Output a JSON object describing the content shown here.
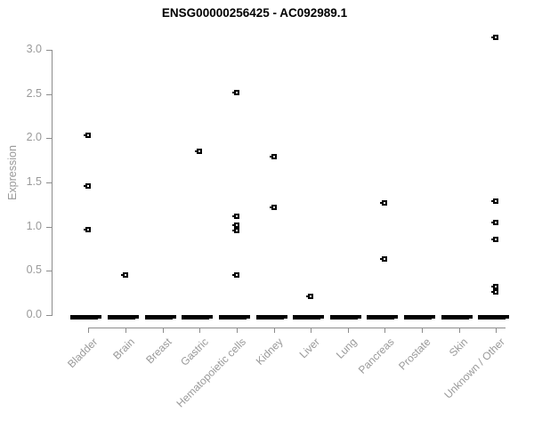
{
  "chart_data": {
    "type": "scatter",
    "title": "ENSG00000256425 - AC092989.1",
    "ylabel": "Expression",
    "xlabel": "",
    "ylim": [
      0,
      3.2
    ],
    "grid": false,
    "legend": false,
    "yticks": [
      {
        "value": 0.0,
        "label": "0.0"
      },
      {
        "value": 0.5,
        "label": "0.5"
      },
      {
        "value": 1.0,
        "label": "1.0"
      },
      {
        "value": 1.5,
        "label": "1.5"
      },
      {
        "value": 2.0,
        "label": "2.0"
      },
      {
        "value": 2.5,
        "label": "2.5"
      },
      {
        "value": 3.0,
        "label": "3.0"
      }
    ],
    "categories": [
      "Bladder",
      "Brain",
      "Breast",
      "Gastric",
      "Hematopoietic cells",
      "Kidney",
      "Liver",
      "Lung",
      "Pancreas",
      "Prostate",
      "Skin",
      "Unknown / Other"
    ],
    "series": [
      {
        "category": "Bladder",
        "zero_cluster": true,
        "points": [
          2.03,
          1.46,
          0.97
        ]
      },
      {
        "category": "Brain",
        "zero_cluster": true,
        "points": [
          0.45
        ]
      },
      {
        "category": "Breast",
        "zero_cluster": true,
        "points": []
      },
      {
        "category": "Gastric",
        "zero_cluster": true,
        "points": [
          1.85
        ]
      },
      {
        "category": "Hematopoietic cells",
        "zero_cluster": true,
        "points": [
          2.52,
          1.12,
          1.02,
          0.96,
          0.45
        ]
      },
      {
        "category": "Kidney",
        "zero_cluster": true,
        "points": [
          1.79,
          1.22
        ]
      },
      {
        "category": "Liver",
        "zero_cluster": true,
        "points": [
          0.21
        ]
      },
      {
        "category": "Lung",
        "zero_cluster": true,
        "points": []
      },
      {
        "category": "Pancreas",
        "zero_cluster": true,
        "points": [
          1.27,
          0.63
        ]
      },
      {
        "category": "Prostate",
        "zero_cluster": true,
        "points": []
      },
      {
        "category": "Skin",
        "zero_cluster": true,
        "points": []
      },
      {
        "category": "Unknown / Other",
        "zero_cluster": true,
        "points": [
          3.14,
          1.29,
          1.05,
          0.86,
          0.32,
          0.26
        ]
      }
    ],
    "colors": {
      "point": "#000000",
      "axis_line": "#8c8c8c",
      "tick_label": "#999999",
      "title": "#000000",
      "background": "#ffffff"
    }
  }
}
